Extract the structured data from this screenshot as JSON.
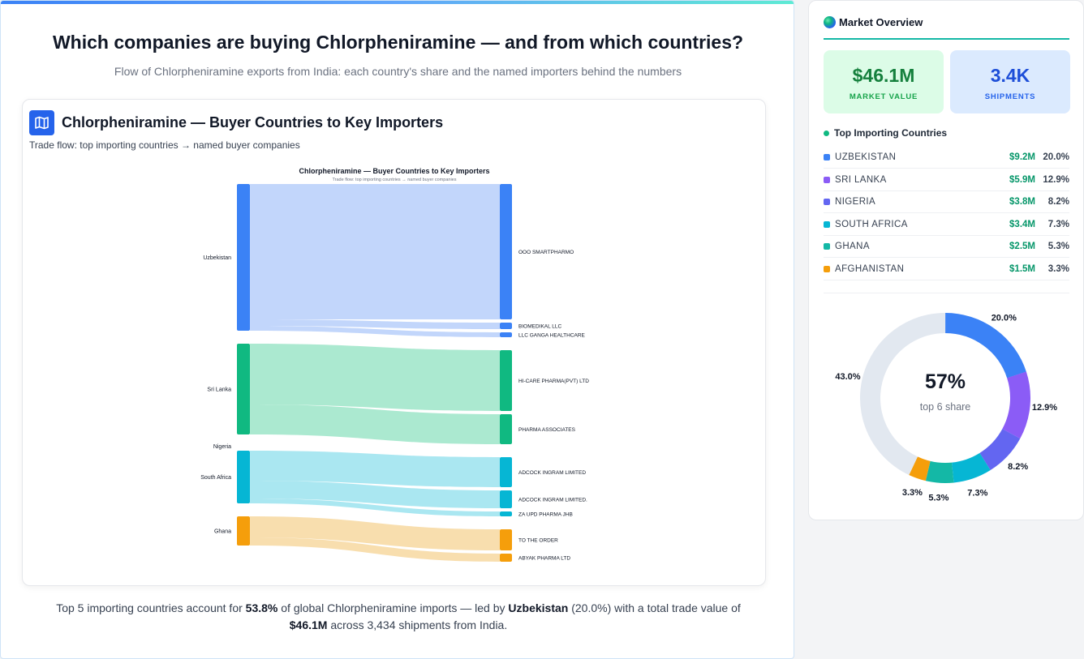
{
  "main": {
    "title": "Which companies are buying Chlorpheniramine — and from which countries?",
    "subtitle": "Flow of Chlorpheniramine exports from India: each country's share and the named importers behind the numbers",
    "card_title": "Chlorpheniramine — Buyer Countries to Key Importers",
    "card_subtitle": "Trade flow: top importing countries → named buyer companies",
    "footer": {
      "part1": "Top 5 importing countries account for ",
      "pct": "53.8%",
      "part2": " of global Chlorpheniramine imports — led by ",
      "leader": "Uzbekistan",
      "part3": " (20.0%) with a total trade value of ",
      "value": "$46.1M",
      "part4": " across 3,434 shipments from India."
    }
  },
  "chart_data": [
    {
      "type": "sankey",
      "title": "Chlorpheniramine — Buyer Countries to Key Importers",
      "subtitle": "Trade flow: top importing countries → named buyer companies",
      "sources": [
        {
          "name": "Uzbekistan",
          "color": "#3b82f6",
          "link_color": "#bfd4fb"
        },
        {
          "name": "Sri Lanka",
          "color": "#10b981",
          "link_color": "#a7e8cd"
        },
        {
          "name": "Nigeria",
          "color": "#6366f1",
          "link_color": "#c7c8f7"
        },
        {
          "name": "South Africa",
          "color": "#06b6d4",
          "link_color": "#a5e6f0"
        },
        {
          "name": "Ghana",
          "color": "#f59e0b",
          "link_color": "#f8dcaa"
        }
      ],
      "targets": [
        {
          "name": "OOO SMARTPHARMO",
          "color": "#3b82f6"
        },
        {
          "name": "BIOMEDIKAL LLC",
          "color": "#3b82f6"
        },
        {
          "name": "LLC GANGA HEALTHCARE",
          "color": "#3b82f6"
        },
        {
          "name": "HI-CARE PHARMA(PVT) LTD",
          "color": "#10b981"
        },
        {
          "name": "PHARMA ASSOCIATES",
          "color": "#10b981"
        },
        {
          "name": "ADCOCK INGRAM LIMITED",
          "color": "#06b6d4"
        },
        {
          "name": "ADCOCK INGRAM LIMITED.",
          "color": "#06b6d4"
        },
        {
          "name": "ZA UPD PHARMA JHB",
          "color": "#06b6d4"
        },
        {
          "name": "TO THE ORDER",
          "color": "#f59e0b"
        },
        {
          "name": "ABYAK PHARMA LTD",
          "color": "#f59e0b"
        }
      ],
      "links": [
        {
          "source": "Uzbekistan",
          "target": "OOO SMARTPHARMO",
          "value": 167
        },
        {
          "source": "Uzbekistan",
          "target": "BIOMEDIKAL LLC",
          "value": 8
        },
        {
          "source": "Uzbekistan",
          "target": "LLC GANGA HEALTHCARE",
          "value": 6
        },
        {
          "source": "Sri Lanka",
          "target": "HI-CARE PHARMA(PVT) LTD",
          "value": 75
        },
        {
          "source": "Sri Lanka",
          "target": "PHARMA ASSOCIATES",
          "value": 37
        },
        {
          "source": "South Africa",
          "target": "ADCOCK INGRAM LIMITED",
          "value": 37
        },
        {
          "source": "South Africa",
          "target": "ADCOCK INGRAM LIMITED.",
          "value": 22
        },
        {
          "source": "South Africa",
          "target": "ZA UPD PHARMA JHB",
          "value": 6
        },
        {
          "source": "Ghana",
          "target": "TO THE ORDER",
          "value": 26
        },
        {
          "source": "Ghana",
          "target": "ABYAK PHARMA LTD",
          "value": 10
        }
      ]
    },
    {
      "type": "donut",
      "center_value": "57%",
      "center_label": "top 6 share",
      "slices": [
        {
          "label": "20.0%",
          "value": 20.0,
          "color": "#3b82f6"
        },
        {
          "label": "12.9%",
          "value": 12.9,
          "color": "#8b5cf6"
        },
        {
          "label": "8.2%",
          "value": 8.2,
          "color": "#6366f1"
        },
        {
          "label": "7.3%",
          "value": 7.3,
          "color": "#06b6d4"
        },
        {
          "label": "5.3%",
          "value": 5.3,
          "color": "#14b8a6"
        },
        {
          "label": "3.3%",
          "value": 3.3,
          "color": "#f59e0b"
        },
        {
          "label": "43.0%",
          "value": 43.0,
          "color": "#e2e8f0"
        }
      ]
    }
  ],
  "sidebar": {
    "title": "Market Overview",
    "market_value": "$46.1M",
    "market_value_label": "MARKET VALUE",
    "shipments": "3.4K",
    "shipments_label": "SHIPMENTS",
    "countries_heading": "Top Importing Countries",
    "countries": [
      {
        "name": "UZBEKISTAN",
        "value": "$9.2M",
        "pct": "20.0%",
        "color": "#3b82f6"
      },
      {
        "name": "SRI LANKA",
        "value": "$5.9M",
        "pct": "12.9%",
        "color": "#8b5cf6"
      },
      {
        "name": "NIGERIA",
        "value": "$3.8M",
        "pct": "8.2%",
        "color": "#6366f1"
      },
      {
        "name": "SOUTH AFRICA",
        "value": "$3.4M",
        "pct": "7.3%",
        "color": "#06b6d4"
      },
      {
        "name": "GHANA",
        "value": "$2.5M",
        "pct": "5.3%",
        "color": "#14b8a6"
      },
      {
        "name": "AFGHANISTAN",
        "value": "$1.5M",
        "pct": "3.3%",
        "color": "#f59e0b"
      }
    ]
  }
}
